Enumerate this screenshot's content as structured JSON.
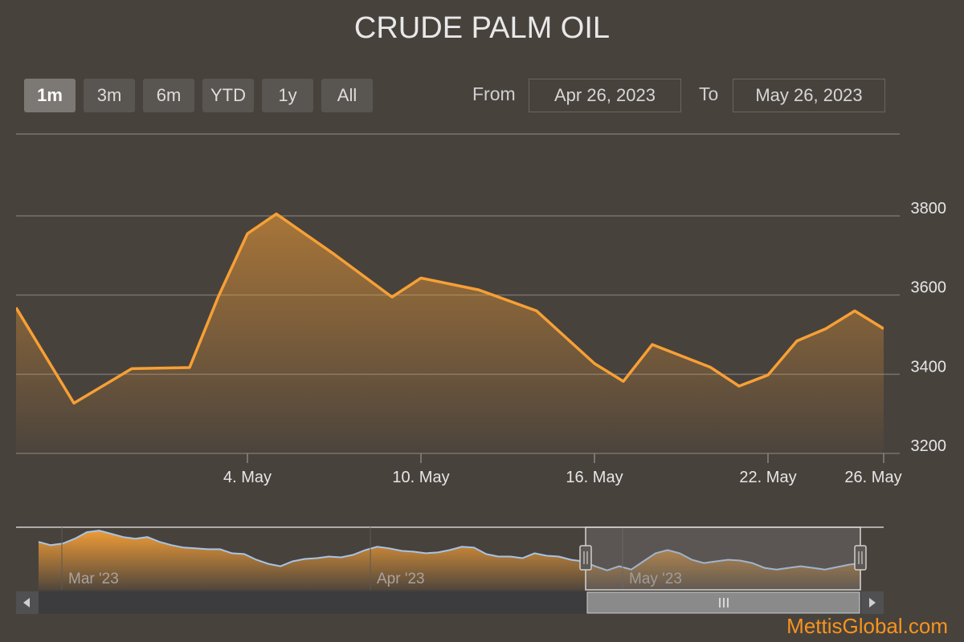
{
  "title": "CRUDE PALM OIL",
  "range_selector": {
    "buttons": [
      {
        "label": "1m",
        "active": true
      },
      {
        "label": "3m",
        "active": false
      },
      {
        "label": "6m",
        "active": false
      },
      {
        "label": "YTD",
        "active": false
      },
      {
        "label": "1y",
        "active": false
      },
      {
        "label": "All",
        "active": false
      }
    ],
    "from_label": "From",
    "from_value": "Apr 26, 2023",
    "to_label": "To",
    "to_value": "May 26, 2023"
  },
  "brand": "MettisGlobal.com",
  "colors": {
    "line": "#f7a035",
    "navigator_line": "#a8c4e6",
    "background": "#48423d"
  },
  "chart_data": {
    "type": "area",
    "title": "CRUDE PALM OIL",
    "x_ticks": [
      "4. May",
      "10. May",
      "16. May",
      "22. May",
      "26. May"
    ],
    "y_ticks": [
      "3200",
      "3400",
      "3600",
      "3800"
    ],
    "ylim": [
      3200,
      3800
    ],
    "grid": true,
    "series": [
      {
        "x": [
          "2023-04-26",
          "2023-04-28",
          "2023-04-30",
          "2023-05-02",
          "2023-05-03",
          "2023-05-04",
          "2023-05-05",
          "2023-05-07",
          "2023-05-09",
          "2023-05-10",
          "2023-05-12",
          "2023-05-14",
          "2023-05-16",
          "2023-05-17",
          "2023-05-18",
          "2023-05-20",
          "2023-05-21",
          "2023-05-22",
          "2023-05-23",
          "2023-05-24",
          "2023-05-25",
          "2023-05-26"
        ],
        "values": [
          3568,
          3327,
          3414,
          3417,
          3597,
          3755,
          3805,
          3703,
          3595,
          3643,
          3613,
          3560,
          3427,
          3382,
          3475,
          3418,
          3370,
          3398,
          3484,
          3515,
          3560,
          3515
        ]
      }
    ],
    "navigator": {
      "labels": [
        "Mar '23",
        "Apr '23",
        "May '23"
      ],
      "values": [
        3880,
        3860,
        3870,
        3900,
        3940,
        3950,
        3930,
        3910,
        3900,
        3910,
        3880,
        3860,
        3845,
        3840,
        3835,
        3835,
        3810,
        3805,
        3770,
        3745,
        3730,
        3760,
        3775,
        3780,
        3790,
        3785,
        3800,
        3830,
        3850,
        3840,
        3825,
        3820,
        3810,
        3815,
        3830,
        3850,
        3845,
        3805,
        3790,
        3790,
        3780,
        3810,
        3795,
        3790,
        3770,
        3760,
        3730,
        3705,
        3730,
        3710,
        3760,
        3810,
        3830,
        3810,
        3770,
        3750,
        3760,
        3770,
        3765,
        3750,
        3720,
        3710,
        3720,
        3730,
        3720,
        3710,
        3725,
        3740,
        3750
      ]
    }
  }
}
